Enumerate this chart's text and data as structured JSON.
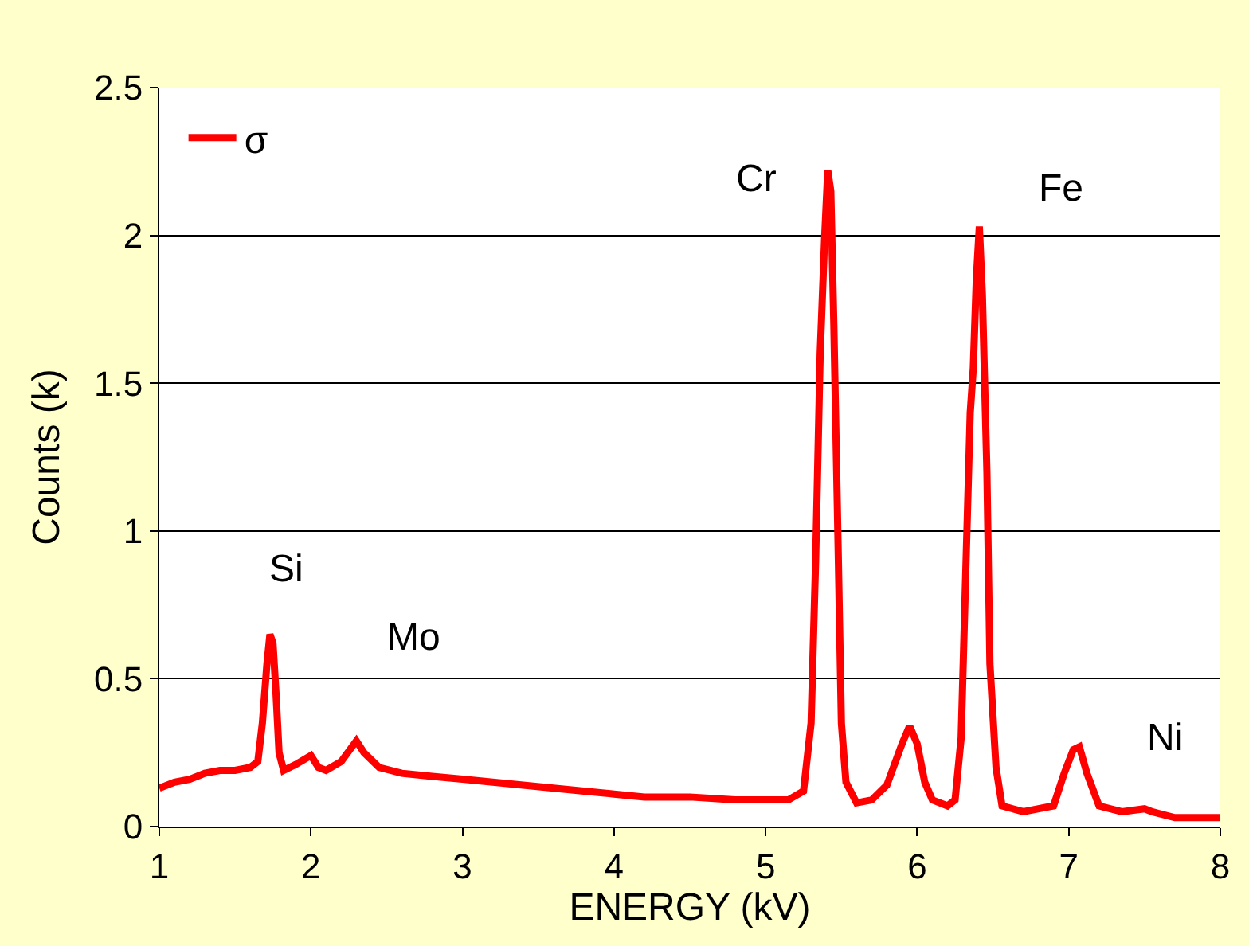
{
  "chart_data": {
    "type": "line",
    "xlabel": "ENERGY (kV)",
    "ylabel": "Counts (k)",
    "x": [
      1.0,
      1.1,
      1.2,
      1.3,
      1.4,
      1.5,
      1.6,
      1.65,
      1.68,
      1.71,
      1.73,
      1.75,
      1.77,
      1.79,
      1.82,
      1.9,
      2.0,
      2.05,
      2.1,
      2.2,
      2.3,
      2.35,
      2.45,
      2.6,
      2.8,
      3.0,
      3.2,
      3.4,
      3.6,
      3.8,
      4.0,
      4.2,
      4.5,
      4.8,
      5.0,
      5.15,
      5.25,
      5.3,
      5.33,
      5.36,
      5.39,
      5.41,
      5.43,
      5.45,
      5.48,
      5.5,
      5.53,
      5.6,
      5.7,
      5.8,
      5.9,
      5.95,
      6.0,
      6.05,
      6.1,
      6.2,
      6.25,
      6.29,
      6.32,
      6.35,
      6.37,
      6.39,
      6.41,
      6.43,
      6.46,
      6.48,
      6.52,
      6.56,
      6.7,
      6.9,
      6.97,
      7.03,
      7.07,
      7.12,
      7.2,
      7.35,
      7.5,
      7.55,
      7.7,
      7.9,
      8.0
    ],
    "series": [
      {
        "name": "σ",
        "color": "#ff0000",
        "values": [
          0.13,
          0.15,
          0.16,
          0.18,
          0.19,
          0.19,
          0.2,
          0.22,
          0.35,
          0.55,
          0.65,
          0.62,
          0.45,
          0.25,
          0.19,
          0.21,
          0.24,
          0.2,
          0.19,
          0.22,
          0.29,
          0.25,
          0.2,
          0.18,
          0.17,
          0.16,
          0.15,
          0.14,
          0.13,
          0.12,
          0.11,
          0.1,
          0.1,
          0.09,
          0.09,
          0.09,
          0.12,
          0.35,
          0.9,
          1.6,
          2.0,
          2.22,
          2.15,
          1.7,
          0.9,
          0.35,
          0.15,
          0.08,
          0.09,
          0.14,
          0.28,
          0.34,
          0.28,
          0.15,
          0.09,
          0.07,
          0.09,
          0.3,
          0.85,
          1.4,
          1.55,
          1.85,
          2.03,
          1.8,
          1.2,
          0.55,
          0.2,
          0.07,
          0.05,
          0.07,
          0.18,
          0.26,
          0.27,
          0.18,
          0.07,
          0.05,
          0.06,
          0.05,
          0.03,
          0.03,
          0.03
        ]
      }
    ],
    "xlim": [
      1,
      8
    ],
    "xticks": [
      1,
      2,
      3,
      4,
      5,
      6,
      7,
      8
    ],
    "ylim": [
      0,
      2.5
    ],
    "yticks": [
      0,
      0.5,
      1,
      1.5,
      2,
      2.5
    ],
    "grid": "y",
    "legend": "top left",
    "marker": "none",
    "line_style": "solid",
    "annotations": [
      {
        "text": "Si",
        "x": 1.84,
        "y": 0.87
      },
      {
        "text": "Mo",
        "x": 2.68,
        "y": 0.64
      },
      {
        "text": "Cr",
        "x": 4.94,
        "y": 2.19
      },
      {
        "text": "Fe",
        "x": 6.95,
        "y": 2.16
      },
      {
        "text": "Ni",
        "x": 7.64,
        "y": 0.3
      }
    ]
  }
}
